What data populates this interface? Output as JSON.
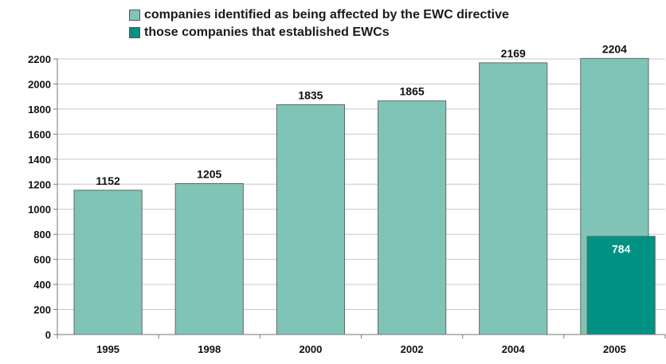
{
  "chart_data": {
    "type": "bar",
    "categories": [
      "1995",
      "1998",
      "2000",
      "2002",
      "2004",
      "2005"
    ],
    "series": [
      {
        "name": "companies identified as being affected by the EWC directive",
        "values": [
          1152,
          1205,
          1835,
          1865,
          2169,
          2204
        ],
        "labels": [
          "1152",
          "1205",
          "1835",
          "1865",
          "2169",
          "2204"
        ],
        "color": "#80c4b8"
      },
      {
        "name": "those companies that established EWCs",
        "values": [
          null,
          null,
          null,
          null,
          null,
          784
        ],
        "labels": [
          "",
          "",
          "",
          "",
          "",
          "784"
        ],
        "color": "#009384"
      }
    ],
    "yticks": [
      "0",
      "200",
      "400",
      "600",
      "800",
      "1000",
      "1200",
      "1400",
      "1600",
      "1800",
      "2000",
      "2200"
    ],
    "ylim": [
      0,
      2200
    ],
    "grid": true,
    "legend": "top-center",
    "title": "",
    "xlabel": "",
    "ylabel": ""
  }
}
